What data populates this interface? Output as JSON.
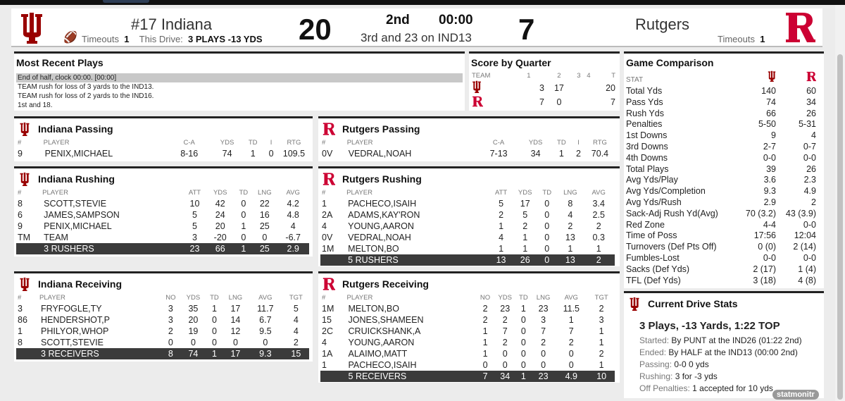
{
  "scoreboard": {
    "home": {
      "name": "#17 Indiana",
      "score": "20",
      "timeouts_label": "Timeouts",
      "timeouts": "1"
    },
    "away": {
      "name": "Rutgers",
      "score": "7",
      "timeouts_label": "Timeouts",
      "timeouts": "1"
    },
    "this_drive_label": "This Drive:",
    "this_drive": "3 PLAYS -13 YDS",
    "period": "2nd",
    "clock": "00:00",
    "down_distance": "3rd and 23 on IND13"
  },
  "recent_plays": {
    "title": "Most Recent Plays",
    "items": [
      "End of half, clock 00:00. [00:00]",
      "TEAM rush for loss of 3 yards to the IND13.",
      "TEAM rush for loss of 2 yards to the IND16.",
      "1st and 18."
    ]
  },
  "quarters": {
    "title": "Score by Quarter",
    "headers": [
      "TEAM",
      "1",
      "2",
      "3",
      "4",
      "T"
    ],
    "rows": [
      {
        "q1": "3",
        "q2": "17",
        "q3": "",
        "q4": "",
        "t": "20"
      },
      {
        "q1": "7",
        "q2": "0",
        "q3": "",
        "q4": "",
        "t": "7"
      }
    ]
  },
  "ind_passing": {
    "title": "Indiana Passing",
    "headers": [
      "#",
      "PLAYER",
      "C-A",
      "YDS",
      "TD",
      "I",
      "RTG"
    ],
    "rows": [
      [
        "9",
        "PENIX,MICHAEL",
        "8-16",
        "74",
        "1",
        "0",
        "109.5"
      ]
    ]
  },
  "rut_passing": {
    "title": "Rutgers Passing",
    "headers": [
      "#",
      "PLAYER",
      "C-A",
      "YDS",
      "TD",
      "I",
      "RTG"
    ],
    "rows": [
      [
        "0V",
        "VEDRAL,NOAH",
        "7-13",
        "34",
        "1",
        "2",
        "70.4"
      ]
    ]
  },
  "ind_rushing": {
    "title": "Indiana Rushing",
    "headers": [
      "#",
      "PLAYER",
      "ATT",
      "YDS",
      "TD",
      "LNG",
      "AVG"
    ],
    "rows": [
      [
        "8",
        "SCOTT,STEVIE",
        "10",
        "42",
        "0",
        "22",
        "4.2"
      ],
      [
        "6",
        "JAMES,SAMPSON",
        "5",
        "24",
        "0",
        "16",
        "4.8"
      ],
      [
        "9",
        "PENIX,MICHAEL",
        "5",
        "20",
        "1",
        "25",
        "4"
      ],
      [
        "TM",
        "TEAM",
        "3",
        "-20",
        "0",
        "0",
        "-6.7"
      ]
    ],
    "total": [
      "",
      "3 RUSHERS",
      "23",
      "66",
      "1",
      "25",
      "2.9"
    ]
  },
  "rut_rushing": {
    "title": "Rutgers Rushing",
    "headers": [
      "#",
      "PLAYER",
      "ATT",
      "YDS",
      "TD",
      "LNG",
      "AVG"
    ],
    "rows": [
      [
        "1",
        "PACHECO,ISAIH",
        "5",
        "17",
        "0",
        "8",
        "3.4"
      ],
      [
        "2A",
        "ADAMS,KAY'RON",
        "2",
        "5",
        "0",
        "4",
        "2.5"
      ],
      [
        "4",
        "YOUNG,AARON",
        "1",
        "2",
        "0",
        "2",
        "2"
      ],
      [
        "0V",
        "VEDRAL,NOAH",
        "4",
        "1",
        "0",
        "13",
        "0.3"
      ],
      [
        "1M",
        "MELTON,BO",
        "1",
        "1",
        "0",
        "1",
        "1"
      ]
    ],
    "total": [
      "",
      "5 RUSHERS",
      "13",
      "26",
      "0",
      "13",
      "2"
    ]
  },
  "ind_receiving": {
    "title": "Indiana Receiving",
    "headers": [
      "#",
      "PLAYER",
      "NO",
      "YDS",
      "TD",
      "LNG",
      "AVG",
      "TGT"
    ],
    "rows": [
      [
        "3",
        "FRYFOGLE,TY",
        "3",
        "35",
        "1",
        "17",
        "11.7",
        "5"
      ],
      [
        "86",
        "HENDERSHOT,P",
        "3",
        "20",
        "0",
        "14",
        "6.7",
        "4"
      ],
      [
        "1",
        "PHILYOR,WHOP",
        "2",
        "19",
        "0",
        "12",
        "9.5",
        "4"
      ],
      [
        "8",
        "SCOTT,STEVIE",
        "0",
        "0",
        "0",
        "0",
        "0",
        "2"
      ]
    ],
    "total": [
      "",
      "3 RECEIVERS",
      "8",
      "74",
      "1",
      "17",
      "9.3",
      "15"
    ]
  },
  "rut_receiving": {
    "title": "Rutgers Receiving",
    "headers": [
      "#",
      "PLAYER",
      "NO",
      "YDS",
      "TD",
      "LNG",
      "AVG",
      "TGT"
    ],
    "rows": [
      [
        "1M",
        "MELTON,BO",
        "2",
        "23",
        "1",
        "23",
        "11.5",
        "2"
      ],
      [
        "15",
        "JONES,SHAMEEN",
        "2",
        "2",
        "0",
        "3",
        "1",
        "3"
      ],
      [
        "2C",
        "CRUICKSHANK,A",
        "1",
        "7",
        "0",
        "7",
        "7",
        "1"
      ],
      [
        "4",
        "YOUNG,AARON",
        "1",
        "2",
        "0",
        "2",
        "2",
        "1"
      ],
      [
        "1A",
        "ALAIMO,MATT",
        "1",
        "0",
        "0",
        "0",
        "0",
        "2"
      ],
      [
        "1",
        "PACHECO,ISAIH",
        "0",
        "0",
        "0",
        "0",
        "0",
        "1"
      ]
    ],
    "total": [
      "",
      "5 RECEIVERS",
      "7",
      "34",
      "1",
      "23",
      "4.9",
      "10"
    ]
  },
  "comparison": {
    "title": "Game Comparison",
    "stat_label": "STAT",
    "rows": [
      [
        "Total Yds",
        "140",
        "60"
      ],
      [
        "Pass Yds",
        "74",
        "34"
      ],
      [
        "Rush Yds",
        "66",
        "26"
      ],
      [
        "Penalties",
        "5-50",
        "5-31"
      ],
      [
        "1st Downs",
        "9",
        "4"
      ],
      [
        "3rd Downs",
        "2-7",
        "0-7"
      ],
      [
        "4th Downs",
        "0-0",
        "0-0"
      ],
      [
        "Total Plays",
        "39",
        "26"
      ],
      [
        "Avg Yds/Play",
        "3.6",
        "2.3"
      ],
      [
        "Avg Yds/Completion",
        "9.3",
        "4.9"
      ],
      [
        "Avg Yds/Rush",
        "2.9",
        "2"
      ],
      [
        "Sack-Adj Rush Yd(Avg)",
        "70 (3.2)",
        "43 (3.9)"
      ],
      [
        "Red Zone",
        "4-4",
        "0-0"
      ],
      [
        "Time of Poss",
        "17:56",
        "12:04"
      ],
      [
        "Turnovers (Def Pts Off)",
        "0 (0)",
        "2 (14)"
      ],
      [
        "Fumbles-Lost",
        "0-0",
        "0-0"
      ],
      [
        "Sacks (Def Yds)",
        "2 (17)",
        "1 (4)"
      ],
      [
        "TFL (Def Yds)",
        "3 (18)",
        "4 (8)"
      ]
    ]
  },
  "drive": {
    "title": "Current Drive Stats",
    "summary": "3 Plays, -13 Yards, 1:22 TOP",
    "lines": [
      {
        "label": "Started:",
        "value": "By PUNT at the IND26 (01:22 2nd)"
      },
      {
        "label": "Ended:",
        "value": "By HALF at the IND13 (00:00 2nd)"
      },
      {
        "label": "Passing:",
        "value": "0-0 0 yds"
      },
      {
        "label": "Rushing:",
        "value": "3 for -3 yds"
      },
      {
        "label": "Off Penalties:",
        "value": "1 accepted for 10 yds"
      }
    ]
  },
  "branding": "statmonitr",
  "colors": {
    "indiana": "#990000",
    "rutgers": "#cc0033",
    "total_row": "#3b3b3b"
  },
  "icons": {
    "indiana_logo": "indiana-logo-icon",
    "rutgers_logo": "rutgers-logo-icon",
    "possession": "football-icon"
  }
}
